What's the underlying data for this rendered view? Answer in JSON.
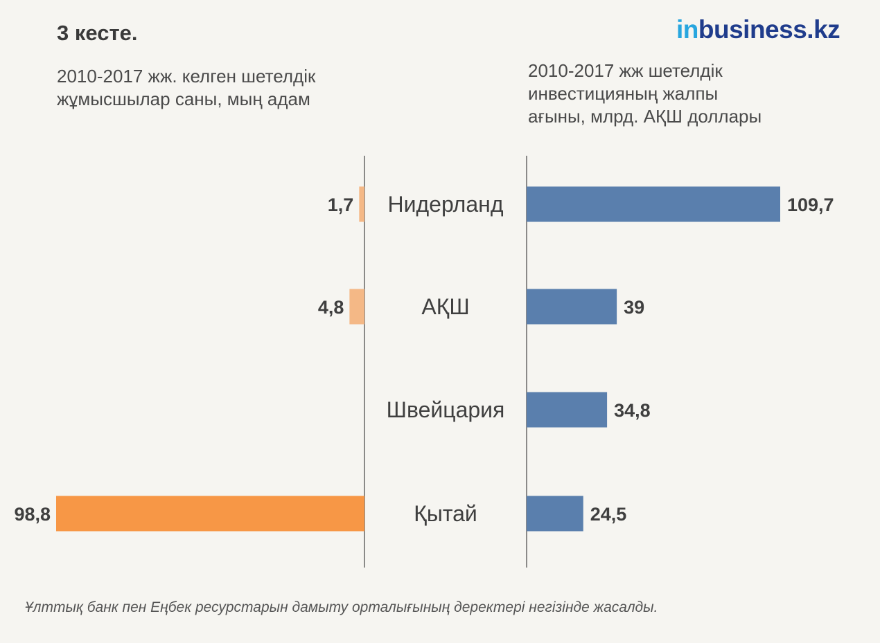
{
  "title": "3 кесте.",
  "logo": {
    "prefix": "in",
    "rest": "business.kz"
  },
  "left_subtitle_lines": [
    "2010-2017 жж. келген шетелдік",
    "жұмысшылар саны, мың адам"
  ],
  "right_subtitle_lines": [
    "2010-2017 жж шетелдік",
    "инвестицияның жалпы",
    "ағыны, млрд. АҚШ доллары"
  ],
  "source": "Ұлттық банк пен Еңбек ресурстарын дамыту орталығының деректері негізінде жасалды.",
  "colors": {
    "left_bar_small": "#f4b886",
    "left_bar_large": "#f79746",
    "right_bar": "#5a7fad",
    "axis": "#444444",
    "label": "#3f3f3f"
  },
  "chart_data": {
    "type": "bar",
    "categories": [
      "Нидерланд",
      "АҚШ",
      "Швейцария",
      "Қытай"
    ],
    "series": [
      {
        "name": "2010-2017 жж. келген шетелдік жұмысшылар саны, мың адам",
        "values": [
          1.7,
          4.8,
          null,
          98.8
        ],
        "labels": [
          "1,7",
          "4,8",
          "",
          "98,8"
        ]
      },
      {
        "name": "2010-2017 жж шетелдік инвестицияның жалпы ағыны, млрд. АҚШ доллары",
        "values": [
          109.7,
          39,
          34.8,
          24.5
        ],
        "labels": [
          "109,7",
          "39",
          "34,8",
          "24,5"
        ]
      }
    ]
  }
}
